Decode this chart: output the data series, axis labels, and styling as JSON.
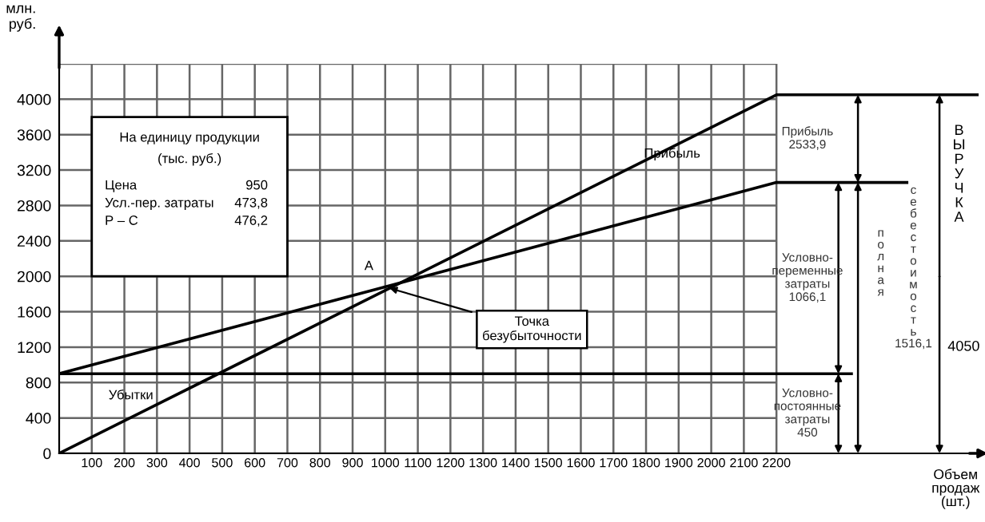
{
  "chart_data": {
    "type": "line",
    "xlabel": "Объем продаж (шт.)",
    "ylabel": "млн. руб.",
    "series": [
      {
        "color": "#000000",
        "x": [
          0,
          2200,
          2820
        ],
        "values": [
          0,
          4050,
          4050
        ]
      },
      {
        "color": "#000000",
        "x": [
          0,
          2200,
          2600
        ],
        "values": [
          900,
          3060,
          3060
        ]
      },
      {
        "color": "#000000",
        "x": [
          0,
          2430
        ],
        "values": [
          900,
          900
        ]
      }
    ],
    "xlim": [
      0,
      2820
    ],
    "ylim": [
      0,
      4400
    ],
    "xticks": [
      100,
      200,
      300,
      400,
      500,
      600,
      700,
      800,
      900,
      1000,
      1100,
      1200,
      1300,
      1400,
      1500,
      1600,
      1700,
      1800,
      1900,
      2000,
      2100,
      2200
    ],
    "yticks": [
      0,
      400,
      800,
      1200,
      1600,
      2000,
      2400,
      2800,
      3200,
      3600,
      4000,
      {
        "value": 4400,
        "label": null
      }
    ],
    "grid": true,
    "legend": false,
    "marker": "none",
    "line_style": "solid",
    "annotations": [
      "На единицу продукции",
      "(тыс. руб.)",
      "Цена",
      "950",
      "Усл.-пер. затраты",
      "473,8",
      "Р – С",
      "476,2",
      "A",
      {
        "text": "Точка безубыточности",
        "x": 1000,
        "y": 1880
      },
      "Прибыль",
      "Убытки",
      "Прибыль 2533,9",
      "Условно-переменные затраты 1066,1",
      "Условно-постоянные затраты 450",
      "полная",
      "себестоимость 1516,1",
      "ВЫРУЧКА",
      "4050"
    ]
  }
}
